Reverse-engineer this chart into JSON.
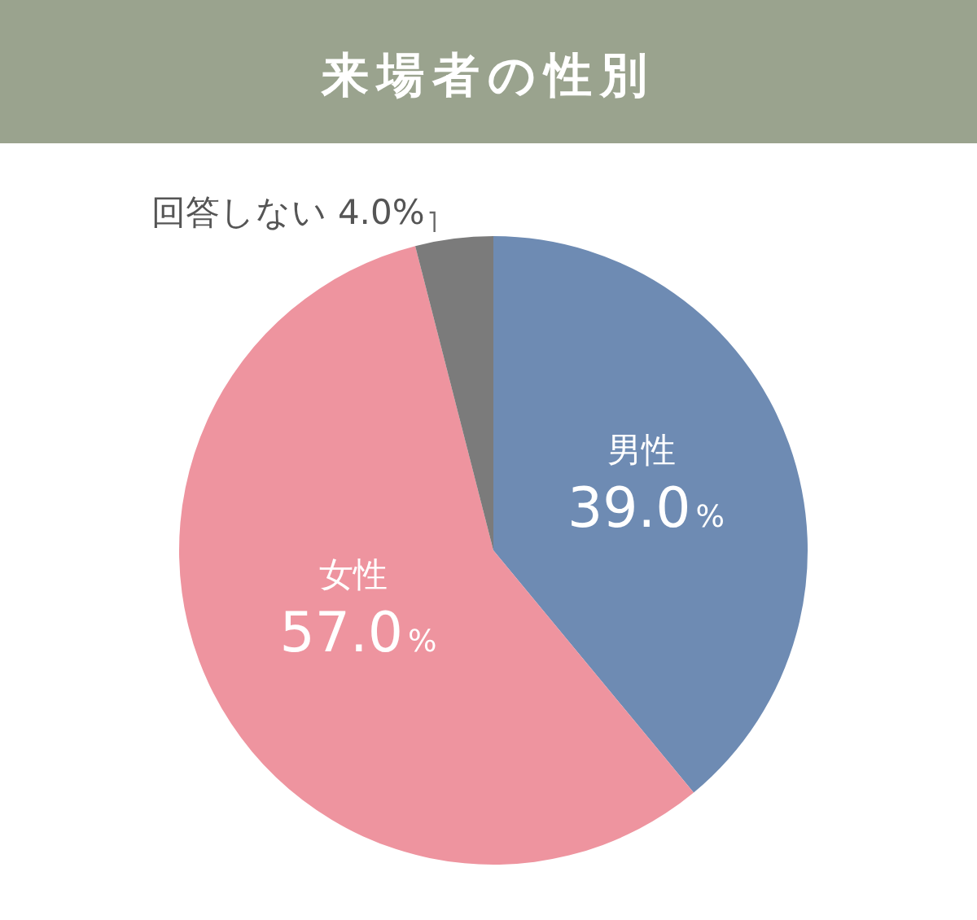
{
  "chart_data": {
    "type": "pie",
    "title": "来場者の性別",
    "categories": [
      "男性",
      "女性",
      "回答しない"
    ],
    "values": [
      39.0,
      57.0,
      4.0
    ],
    "colors": [
      "#6e8bb3",
      "#ee949f",
      "#7b7b7b"
    ],
    "value_labels": [
      "39.0%",
      "57.0%",
      "4.0%"
    ],
    "legend": false
  }
}
